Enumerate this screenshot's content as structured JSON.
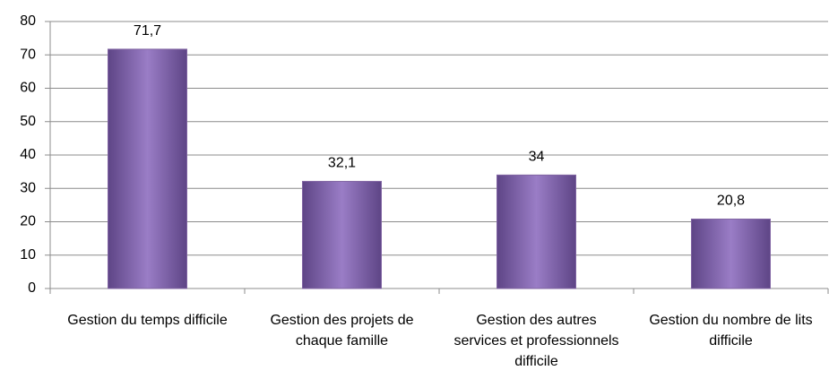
{
  "chart_data": {
    "type": "bar",
    "categories": [
      "Gestion du temps difficile",
      "Gestion des projets de chaque famille",
      "Gestion des autres services et professionnels difficile",
      "Gestion du nombre de lits difficile"
    ],
    "values": [
      71.7,
      32.1,
      34,
      20.8
    ],
    "value_labels": [
      "71,7",
      "32,1",
      "34",
      "20,8"
    ],
    "color": "#8064a2",
    "ylim": [
      0,
      80
    ],
    "yticks": [
      0,
      10,
      20,
      30,
      40,
      50,
      60,
      70,
      80
    ],
    "grid": true
  }
}
